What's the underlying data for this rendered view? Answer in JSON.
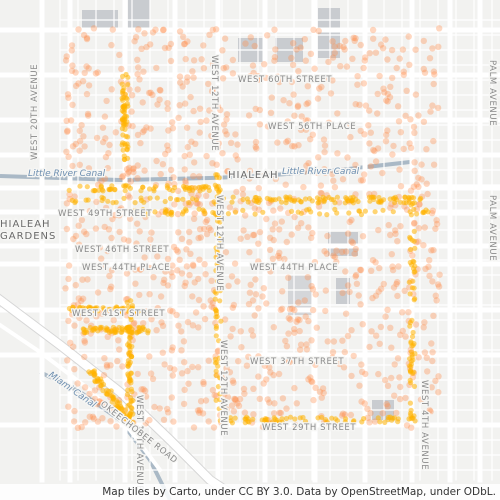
{
  "map": {
    "attribution": "Map tiles by Carto, under CC BY 3.0. Data by OpenStreetMap, under ODbL.",
    "colors": {
      "land": "#f2f2f0",
      "road": "#ffffff",
      "road_edge": "#d6d6d6",
      "building": "#c9ccd0",
      "water": "#aab9c6",
      "dot": "#ff8c4a",
      "dot_dense": "#ffb300"
    },
    "labels": {
      "place_hialeah": "HIALEAH",
      "place_hialeah_gardens_1": "HIALEAH",
      "place_hialeah_gardens_2": "GARDENS",
      "street_west_60th": "WEST 60TH STREET",
      "street_west_56th_place": "WEST 56TH PLACE",
      "street_west_49th": "WEST 49TH STREET",
      "street_west_46th": "WEST 46TH STREET",
      "street_west_44th_place_left": "WEST 44TH PLACE",
      "street_west_44th_place_right": "WEST 44TH PLACE",
      "street_west_41st": "WEST 41ST STREET",
      "street_west_37th": "WEST 37TH STREET",
      "street_west_29th": "WEST 29TH STREET",
      "street_west_20th_ave": "WEST 20TH AVENUE",
      "street_west_16th_ave": "WEST 16TH AVENUE",
      "street_west_12th_ave_top": "WEST 12TH AVENUE",
      "street_west_12th_ave_mid": "WEST 12TH AVENUE",
      "street_west_12th_ave_bottom": "WEST 12TH AVENUE",
      "street_west_4th_ave": "WEST 4TH AVENUE",
      "street_palm_ave_top": "PALM AVENUE",
      "street_palm_ave_bottom": "PALM AVENUE",
      "street_okeechobee": "OKEECHOBEE ROAD",
      "water_little_river_canal_left": "Little River Canal",
      "water_little_river_canal_right": "Little River Canal",
      "water_miami_canal": "Miami Canal"
    }
  }
}
